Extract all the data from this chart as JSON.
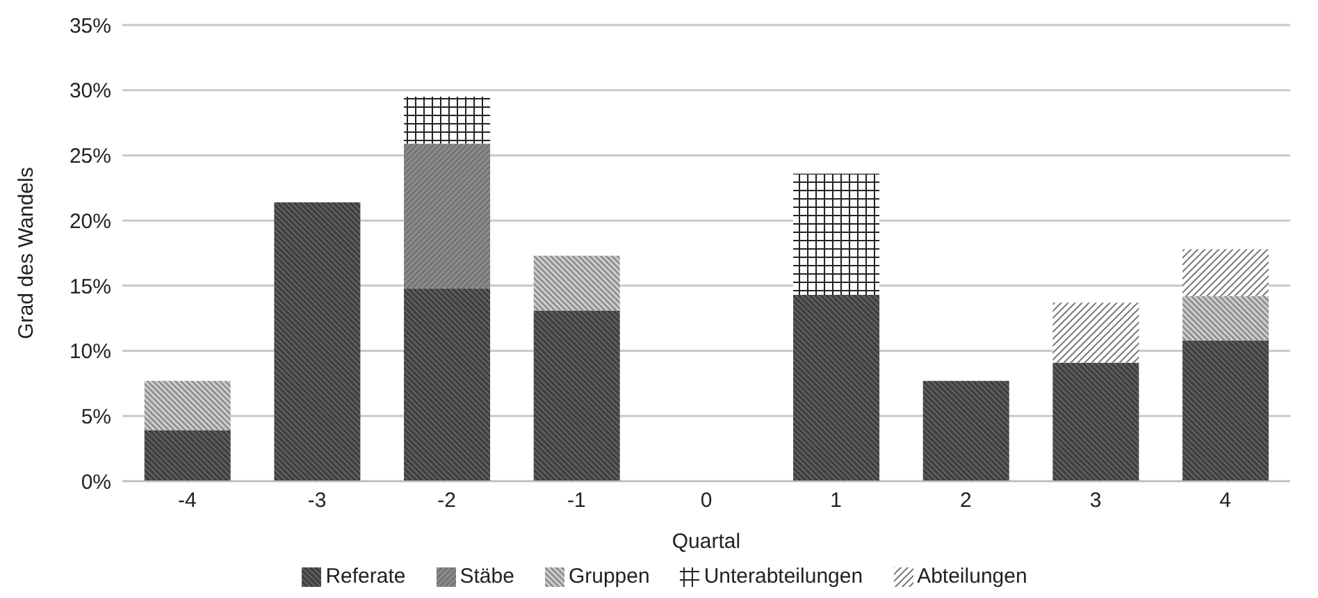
{
  "chart_data": {
    "type": "bar",
    "stacked": true,
    "xlabel": "Quartal",
    "ylabel": "Grad des Wandels",
    "categories": [
      "-4",
      "-3",
      "-2",
      "-1",
      "0",
      "1",
      "2",
      "3",
      "4"
    ],
    "series": [
      {
        "name": "Referate",
        "color": "#404040",
        "values": [
          3.9,
          21.4,
          14.8,
          13.1,
          0,
          14.3,
          7.7,
          9.1,
          10.8
        ]
      },
      {
        "name": "Stäbe",
        "color": "#8a8a8a",
        "values": [
          null,
          null,
          11.1,
          null,
          null,
          null,
          null,
          null,
          null
        ]
      },
      {
        "name": "Gruppen",
        "color": "#c8c8c8",
        "values": [
          3.8,
          null,
          null,
          4.2,
          null,
          null,
          null,
          null,
          3.4
        ]
      },
      {
        "name": "Unterabteilungen",
        "color": "#222222",
        "values": [
          null,
          null,
          3.6,
          null,
          null,
          9.3,
          null,
          null,
          null
        ]
      },
      {
        "name": "Abteilungen",
        "color": "#7a7a7a",
        "values": [
          null,
          null,
          null,
          null,
          null,
          null,
          null,
          4.6,
          3.6
        ]
      }
    ],
    "ylim": [
      0,
      35
    ],
    "yticks": [
      {
        "value": 0,
        "label": "0%"
      },
      {
        "value": 5,
        "label": "5%"
      },
      {
        "value": 10,
        "label": "10%"
      },
      {
        "value": 15,
        "label": "15%"
      },
      {
        "value": 20,
        "label": "20%"
      },
      {
        "value": 25,
        "label": "25%"
      },
      {
        "value": 30,
        "label": "30%"
      },
      {
        "value": 35,
        "label": "35%"
      }
    ],
    "grid": "y",
    "legend": "bottom"
  }
}
